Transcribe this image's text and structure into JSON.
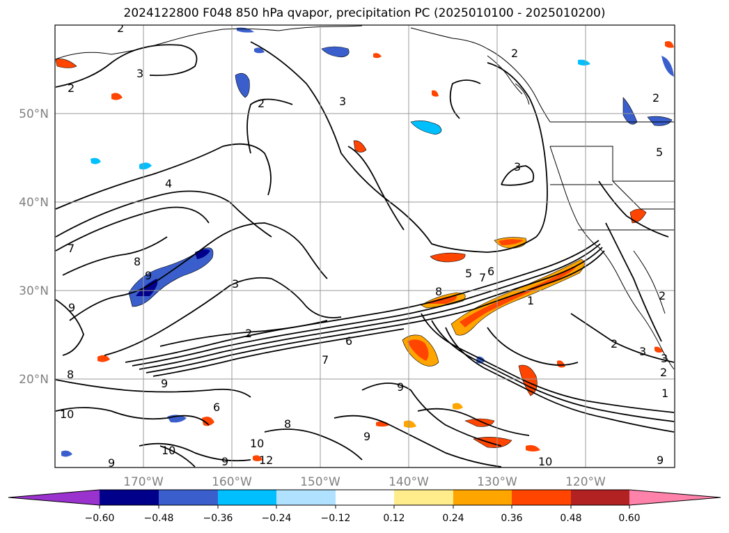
{
  "title": "2024122800 F048 850 hPa qvapor, precipitation PC (2025010100 - 2025010200)",
  "latitude_labels": [
    "50°N",
    "40°N",
    "30°N",
    "20°N"
  ],
  "longitude_labels": [
    "170°W",
    "160°W",
    "150°W",
    "140°W",
    "130°W",
    "120°W"
  ],
  "colorbar": {
    "tick_labels": [
      "−0.60",
      "−0.48",
      "−0.36",
      "−0.24",
      "−0.12",
      "0.12",
      "0.24",
      "0.36",
      "0.48",
      "0.60"
    ],
    "colors": [
      "#9a32cd",
      "#00008b",
      "#3a5fcd",
      "#00bfff",
      "#b0e2ff",
      "#ffffff",
      "#ffec8b",
      "#ffa500",
      "#ff4500",
      "#b22222",
      "#ff82ab"
    ]
  },
  "contour_labels": [
    "2",
    "3",
    "2",
    "3",
    "2",
    "2",
    "3",
    "4",
    "2",
    "3",
    "7",
    "8",
    "9",
    "3",
    "2",
    "9",
    "8",
    "5",
    "6",
    "7",
    "1",
    "2",
    "2",
    "3",
    "2",
    "1",
    "8",
    "9",
    "9",
    "6",
    "10",
    "10",
    "9",
    "12",
    "10",
    "9",
    "9",
    "8",
    "7",
    "6",
    "5",
    "10",
    "9"
  ],
  "colors": {
    "contour": "#000000",
    "coastline": "#000000",
    "grid": "#999999"
  }
}
